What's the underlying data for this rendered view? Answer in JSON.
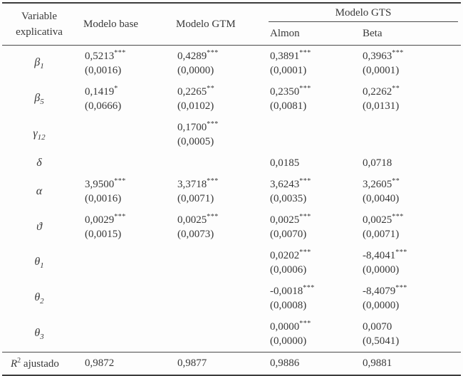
{
  "header": {
    "variable_line1": "Variable",
    "variable_line2": "explicativa",
    "modelo_base": "Modelo base",
    "modelo_gtm": "Modelo GTM",
    "modelo_gts": "Modelo GTS",
    "gts_sub_almon": "Almon",
    "gts_sub_beta": "Beta"
  },
  "table": {
    "rows": [
      {
        "label": {
          "base": "β",
          "sub": "1"
        },
        "cells": [
          {
            "value": "0,5213",
            "stars": "***",
            "se": "(0,0016)"
          },
          {
            "value": "0,4289",
            "stars": "***",
            "se": "(0,0000)"
          },
          {
            "value": "0,3891",
            "stars": "***",
            "se": "(0,0001)"
          },
          {
            "value": "0,3963",
            "stars": "***",
            "se": "(0,0001)"
          }
        ]
      },
      {
        "label": {
          "base": "β",
          "sub": "5"
        },
        "cells": [
          {
            "value": "0,1419",
            "stars": "*",
            "se": "(0,0666)"
          },
          {
            "value": "0,2265",
            "stars": "**",
            "se": "(0,0102)"
          },
          {
            "value": "0,2350",
            "stars": "***",
            "se": "(0,0081)"
          },
          {
            "value": "0,2262",
            "stars": "**",
            "se": "(0,0131)"
          }
        ]
      },
      {
        "label": {
          "base": "γ",
          "sub": "12"
        },
        "cells": [
          null,
          {
            "value": "0,1700",
            "stars": "***",
            "se": "(0,0005)"
          },
          null,
          null
        ]
      },
      {
        "label": {
          "base": "δ",
          "sub": ""
        },
        "cells": [
          null,
          null,
          {
            "value": "0,0185",
            "stars": "",
            "se": ""
          },
          {
            "value": "0,0718",
            "stars": "",
            "se": ""
          }
        ]
      },
      {
        "label": {
          "base": "α",
          "sub": ""
        },
        "cells": [
          {
            "value": "3,9500",
            "stars": "***",
            "se": "(0,0016)"
          },
          {
            "value": "3,3718",
            "stars": "***",
            "se": "(0,0071)"
          },
          {
            "value": "3,6243",
            "stars": "***",
            "se": "(0,0035)"
          },
          {
            "value": "3,2605",
            "stars": "**",
            "se": "(0,0040)"
          }
        ]
      },
      {
        "label": {
          "base": "ϑ",
          "sub": ""
        },
        "cells": [
          {
            "value": "0,0029",
            "stars": "***",
            "se": "(0,0015)"
          },
          {
            "value": "0,0025",
            "stars": "***",
            "se": "(0,0073)"
          },
          {
            "value": "0,0025",
            "stars": "***",
            "se": "(0,0070)"
          },
          {
            "value": "0,0025",
            "stars": "***",
            "se": "(0,0071)"
          }
        ]
      },
      {
        "label": {
          "base": "θ",
          "sub": "1"
        },
        "cells": [
          null,
          null,
          {
            "value": "0,0202",
            "stars": "***",
            "se": "(0,0006)"
          },
          {
            "value": "-8,4041",
            "stars": "***",
            "se": "(0,0000)"
          }
        ]
      },
      {
        "label": {
          "base": "θ",
          "sub": "2"
        },
        "cells": [
          null,
          null,
          {
            "value": "-0,0018",
            "stars": "***",
            "se": "(0,0008)"
          },
          {
            "value": "-8,4079",
            "stars": "***",
            "se": "(0,0000)"
          }
        ]
      },
      {
        "label": {
          "base": "θ",
          "sub": "3"
        },
        "cells": [
          null,
          null,
          {
            "value": "0,0000",
            "stars": "***",
            "se": "(0,0000)"
          },
          {
            "value": "0,0070",
            "stars": "",
            "se": "(0,5041)"
          }
        ]
      }
    ],
    "footer": {
      "label_base": "R",
      "label_sup": "2",
      "label_suffix": " ajustado",
      "values": [
        "0,9872",
        "0,9877",
        "0,9886",
        "0,9881"
      ]
    }
  },
  "colors": {
    "text": "#383838",
    "rule_heavy": "#3c3c3c",
    "rule_light": "#4a4a4a",
    "background": "#fdfdfd"
  }
}
